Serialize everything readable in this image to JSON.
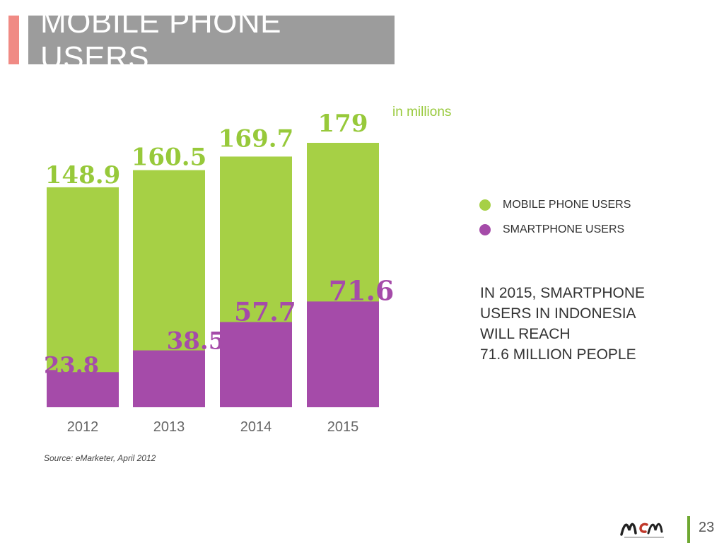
{
  "title": "MOBILE PHONE USERS",
  "unit_label": "in millions",
  "legend": [
    {
      "label": "MOBILE PHONE USERS",
      "color": "#a6d045"
    },
    {
      "label": "SMARTPHONE USERS",
      "color": "#a54ba9"
    }
  ],
  "note": {
    "lines": [
      "IN 2015, SMARTPHONE",
      "USERS IN INDONESIA",
      "WILL REACH",
      "71.6 MILLION PEOPLE"
    ]
  },
  "source": "Source: eMarketer, April 2012",
  "footer": {
    "logo_text": "MCM",
    "page_number": "23"
  },
  "colors": {
    "mobile_value": "#97c93a",
    "smartphone_value": "#a54ba9",
    "title_bg": "#9c9c9c",
    "accent": "#f08a84"
  },
  "chart_data": {
    "type": "bar",
    "categories": [
      "2012",
      "2013",
      "2014",
      "2015"
    ],
    "series": [
      {
        "name": "MOBILE PHONE USERS",
        "values": [
          148.9,
          160.5,
          169.7,
          179
        ]
      },
      {
        "name": "SMARTPHONE USERS",
        "values": [
          23.8,
          38.5,
          57.7,
          71.6
        ]
      }
    ],
    "value_labels": {
      "mobile": [
        "148.9",
        "160.5",
        "169.7",
        "179"
      ],
      "smartphone": [
        "23.8",
        "38.5",
        "57.7",
        "71.6"
      ]
    },
    "ylim": [
      0,
      179
    ],
    "overlapping": true,
    "grid": false
  }
}
